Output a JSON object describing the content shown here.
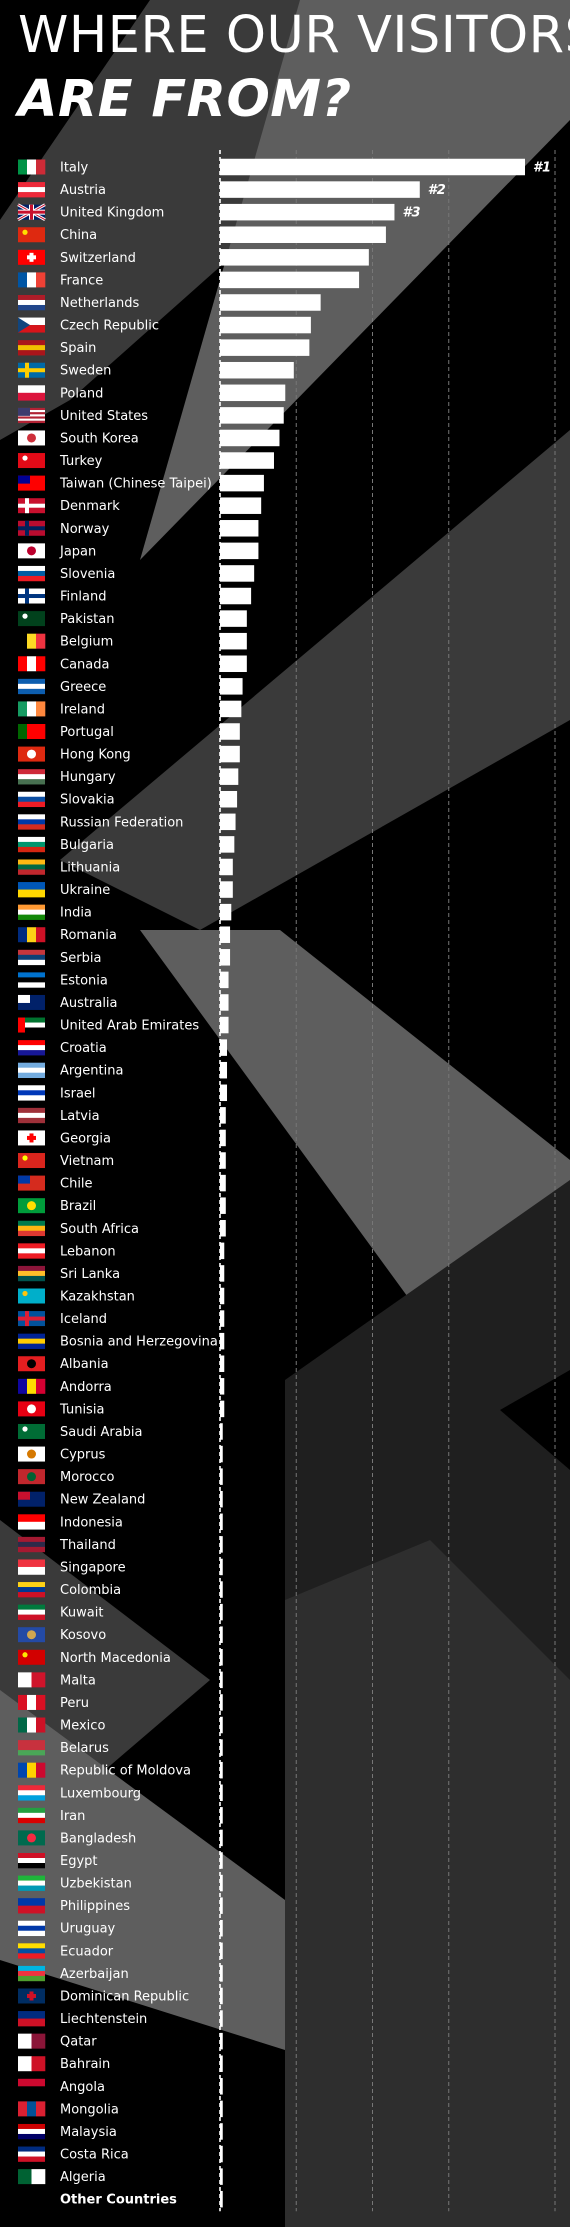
{
  "title": {
    "line1": "WHERE OUR VISITORS",
    "line2": "ARE FROM?"
  },
  "colors": {
    "background": "#000000",
    "bar": "#ffffff",
    "shape_dark": "#1f1f1f",
    "shape_mid": "#3a3a3a",
    "shape_light": "#5e5e5e",
    "grid": "#777777"
  },
  "chart_data": {
    "type": "bar",
    "orientation": "horizontal",
    "grid": true,
    "xlim": [
      0,
      100
    ],
    "rank_labels": [
      "#1",
      "#2",
      "#3"
    ],
    "categories": [
      "Italy",
      "Austria",
      "United Kingdom",
      "China",
      "Switzerland",
      "France",
      "Netherlands",
      "Czech Republic",
      "Spain",
      "Sweden",
      "Poland",
      "United States",
      "South Korea",
      "Turkey",
      "Taiwan (Chinese Taipei)",
      "Denmark",
      "Norway",
      "Japan",
      "Slovenia",
      "Finland",
      "Pakistan",
      "Belgium",
      "Canada",
      "Greece",
      "Ireland",
      "Portugal",
      "Hong Kong",
      "Hungary",
      "Slovakia",
      "Russian Federation",
      "Bulgaria",
      "Lithuania",
      "Ukraine",
      "India",
      "Romania",
      "Serbia",
      "Estonia",
      "Australia",
      "United Arab Emirates",
      "Croatia",
      "Argentina",
      "Israel",
      "Latvia",
      "Georgia",
      "Vietnam",
      "Chile",
      "Brazil",
      "South Africa",
      "Lebanon",
      "Sri Lanka",
      "Kazakhstan",
      "Iceland",
      "Bosnia and Herzegovina",
      "Albania",
      "Andorra",
      "Tunisia",
      "Saudi Arabia",
      "Cyprus",
      "Morocco",
      "New Zealand",
      "Indonesia",
      "Thailand",
      "Singapore",
      "Colombia",
      "Kuwait",
      "Kosovo",
      "North Macedonia",
      "Malta",
      "Peru",
      "Mexico",
      "Belarus",
      "Republic of Moldova",
      "Luxembourg",
      "Iran",
      "Bangladesh",
      "Egypt",
      "Uzbekistan",
      "Philippines",
      "Uruguay",
      "Ecuador",
      "Azerbaijan",
      "Dominican Republic",
      "Liechtenstein",
      "Qatar",
      "Bahrain",
      "Angola",
      "Mongolia",
      "Malaysia",
      "Costa Rica",
      "Algeria",
      "Other Countries"
    ],
    "values": [
      100,
      65.5,
      57.2,
      54.4,
      48.8,
      45.6,
      33.0,
      29.8,
      29.3,
      24.2,
      21.4,
      20.9,
      19.5,
      17.7,
      14.4,
      13.5,
      12.6,
      12.6,
      11.2,
      10.2,
      8.8,
      8.8,
      8.8,
      7.4,
      7.0,
      6.5,
      6.5,
      6.0,
      5.6,
      5.1,
      4.7,
      4.2,
      4.2,
      3.7,
      3.3,
      3.3,
      2.8,
      2.8,
      2.8,
      2.3,
      2.3,
      2.3,
      1.9,
      1.9,
      1.9,
      1.9,
      1.9,
      1.9,
      1.4,
      1.4,
      1.4,
      1.4,
      1.4,
      1.4,
      1.4,
      1.4,
      0.9,
      0.9,
      0.9,
      0.9,
      0.9,
      0.9,
      0.9,
      0.9,
      0.9,
      0.9,
      0.9,
      0.9,
      0.9,
      0.9,
      0.9,
      0.9,
      0.9,
      0.9,
      0.9,
      0.9,
      0.9,
      0.9,
      0.9,
      0.9,
      0.9,
      0.9,
      0.9,
      0.9,
      0.9,
      0.9,
      0.9,
      0.9,
      0.9,
      0.9,
      0.9
    ],
    "flags": [
      [
        "v",
        "#009246",
        "#ffffff",
        "#ce2b37"
      ],
      [
        "h",
        "#ed2939",
        "#ffffff",
        "#ed2939"
      ],
      [
        "uk"
      ],
      [
        "s",
        "#de2910",
        "#ffde00"
      ],
      [
        "cr",
        "#ff0000",
        "#ffffff"
      ],
      [
        "v",
        "#0055a4",
        "#ffffff",
        "#ef4135"
      ],
      [
        "h",
        "#ae1c28",
        "#ffffff",
        "#21468b"
      ],
      [
        "cz"
      ],
      [
        "h",
        "#aa151b",
        "#f1bf00",
        "#aa151b"
      ],
      [
        "nc",
        "#006aa7",
        "#fecc00"
      ],
      [
        "h",
        "#ffffff",
        "#dc143c"
      ],
      [
        "us"
      ],
      [
        "c",
        "#ffffff",
        "#cd2e3a"
      ],
      [
        "s",
        "#e30a17",
        "#ffffff"
      ],
      [
        "ca",
        "#fe0000",
        "#000095"
      ],
      [
        "nc",
        "#c8102e",
        "#ffffff"
      ],
      [
        "nc",
        "#ba0c2f",
        "#00205b"
      ],
      [
        "c",
        "#ffffff",
        "#bc002d"
      ],
      [
        "h",
        "#ffffff",
        "#005da4",
        "#ed1c24"
      ],
      [
        "nc",
        "#ffffff",
        "#003580"
      ],
      [
        "s",
        "#01411c",
        "#ffffff"
      ],
      [
        "v",
        "#000000",
        "#fdda24",
        "#ef3340"
      ],
      [
        "v",
        "#ff0000",
        "#ffffff",
        "#ff0000"
      ],
      [
        "h",
        "#0d5eaf",
        "#ffffff",
        "#0d5eaf"
      ],
      [
        "v",
        "#169b62",
        "#ffffff",
        "#ff883e"
      ],
      [
        "v",
        "#006600",
        "#ff0000",
        "#ff0000"
      ],
      [
        "c",
        "#de2910",
        "#ffffff"
      ],
      [
        "h",
        "#ce2939",
        "#ffffff",
        "#477050"
      ],
      [
        "h",
        "#ffffff",
        "#0b4ea2",
        "#ee1c25"
      ],
      [
        "h",
        "#ffffff",
        "#0039a6",
        "#d52b1e"
      ],
      [
        "h",
        "#ffffff",
        "#00966e",
        "#d62612"
      ],
      [
        "h",
        "#fdb913",
        "#006a44",
        "#c1272d"
      ],
      [
        "h",
        "#0057b7",
        "#ffd700"
      ],
      [
        "h",
        "#ff9933",
        "#ffffff",
        "#138808"
      ],
      [
        "v",
        "#002b7f",
        "#fcd116",
        "#ce1126"
      ],
      [
        "h",
        "#c6363c",
        "#0c4076",
        "#ffffff"
      ],
      [
        "h",
        "#0072ce",
        "#000000",
        "#ffffff"
      ],
      [
        "ca",
        "#012169",
        "#ffffff"
      ],
      [
        "uae"
      ],
      [
        "h",
        "#ff0000",
        "#ffffff",
        "#171796"
      ],
      [
        "h",
        "#74acdf",
        "#ffffff",
        "#74acdf"
      ],
      [
        "h",
        "#ffffff",
        "#0038b8",
        "#ffffff"
      ],
      [
        "h",
        "#9e3039",
        "#ffffff",
        "#9e3039"
      ],
      [
        "cr",
        "#ffffff",
        "#ff0000"
      ],
      [
        "s",
        "#da251d",
        "#ffff00"
      ],
      [
        "ca",
        "#d52b1e",
        "#0039a6"
      ],
      [
        "c",
        "#009c3b",
        "#ffdf00"
      ],
      [
        "h",
        "#007a4d",
        "#ffb612",
        "#de3831"
      ],
      [
        "h",
        "#ed1c24",
        "#ffffff",
        "#ed1c24"
      ],
      [
        "h",
        "#8d153a",
        "#ffbe29",
        "#00534e"
      ],
      [
        "s",
        "#00afca",
        "#fec50c"
      ],
      [
        "nc",
        "#02529c",
        "#dc1e35"
      ],
      [
        "h",
        "#002395",
        "#fecb00",
        "#002395"
      ],
      [
        "c",
        "#e41e20",
        "#000000"
      ],
      [
        "v",
        "#10069f",
        "#fedd00",
        "#d50032"
      ],
      [
        "c",
        "#e70013",
        "#ffffff"
      ],
      [
        "s",
        "#006c35",
        "#ffffff"
      ],
      [
        "c",
        "#ffffff",
        "#d57800"
      ],
      [
        "c",
        "#c1272d",
        "#006233"
      ],
      [
        "ca",
        "#012169",
        "#c8102e"
      ],
      [
        "h",
        "#ff0000",
        "#ffffff"
      ],
      [
        "h",
        "#a51931",
        "#2d2a4a",
        "#a51931"
      ],
      [
        "h",
        "#ef3340",
        "#ffffff"
      ],
      [
        "h",
        "#fcd116",
        "#003893",
        "#ce1126"
      ],
      [
        "h",
        "#007a3d",
        "#ffffff",
        "#ce1126"
      ],
      [
        "c",
        "#244aa5",
        "#d0a650"
      ],
      [
        "s",
        "#d20000",
        "#ffe600"
      ],
      [
        "v",
        "#ffffff",
        "#cf142b"
      ],
      [
        "v",
        "#d91023",
        "#ffffff",
        "#d91023"
      ],
      [
        "v",
        "#006847",
        "#ffffff",
        "#ce1126"
      ],
      [
        "h",
        "#c8313e",
        "#c8313e",
        "#4aa657"
      ],
      [
        "v",
        "#0046ae",
        "#ffd200",
        "#cc092f"
      ],
      [
        "h",
        "#ed2939",
        "#ffffff",
        "#00a1de"
      ],
      [
        "h",
        "#239f40",
        "#ffffff",
        "#da0000"
      ],
      [
        "c",
        "#006a4e",
        "#f42a41"
      ],
      [
        "h",
        "#ce1126",
        "#ffffff",
        "#000000"
      ],
      [
        "h",
        "#1eb53a",
        "#ffffff",
        "#0099b5"
      ],
      [
        "h",
        "#0038a8",
        "#ce1126"
      ],
      [
        "h",
        "#ffffff",
        "#0038a8",
        "#ffffff"
      ],
      [
        "h",
        "#ffdd00",
        "#034ea2",
        "#ed1c24"
      ],
      [
        "h",
        "#00b5e2",
        "#ef3340",
        "#509e2f"
      ],
      [
        "cr",
        "#002d62",
        "#ce1126"
      ],
      [
        "h",
        "#002b7f",
        "#ce1126"
      ],
      [
        "v",
        "#ffffff",
        "#8a1538"
      ],
      [
        "v",
        "#ffffff",
        "#ce1126"
      ],
      [
        "h",
        "#cc092f",
        "#000000"
      ],
      [
        "v",
        "#da2032",
        "#015197",
        "#da2032"
      ],
      [
        "h",
        "#cc0001",
        "#ffffff",
        "#010066"
      ],
      [
        "h",
        "#002b7f",
        "#ffffff",
        "#ce1126"
      ],
      [
        "v",
        "#006233",
        "#ffffff"
      ],
      [
        "none"
      ]
    ]
  }
}
